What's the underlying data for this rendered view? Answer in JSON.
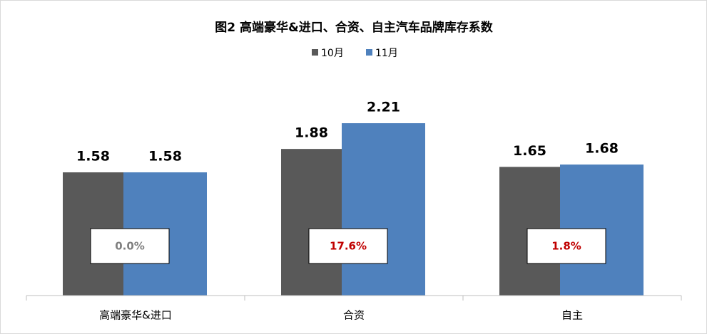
{
  "chart_data": {
    "type": "bar",
    "title": "图2 高端豪华&进口、合资、自主汽车品牌库存系数",
    "categories": [
      "高端豪华&进口",
      "合资",
      "自主"
    ],
    "series": [
      {
        "name": "10月",
        "color": "#595959",
        "values": [
          1.58,
          1.88,
          1.65
        ]
      },
      {
        "name": "11月",
        "color": "#4f81bd",
        "values": [
          1.58,
          2.21,
          1.68
        ]
      }
    ],
    "annotations": [
      {
        "text": "0.0%",
        "color": "#7f7f7f"
      },
      {
        "text": "17.6%",
        "color": "#c00000"
      },
      {
        "text": "1.8%",
        "color": "#c00000"
      }
    ],
    "ylim": [
      0,
      2.5
    ],
    "legend": "top"
  }
}
